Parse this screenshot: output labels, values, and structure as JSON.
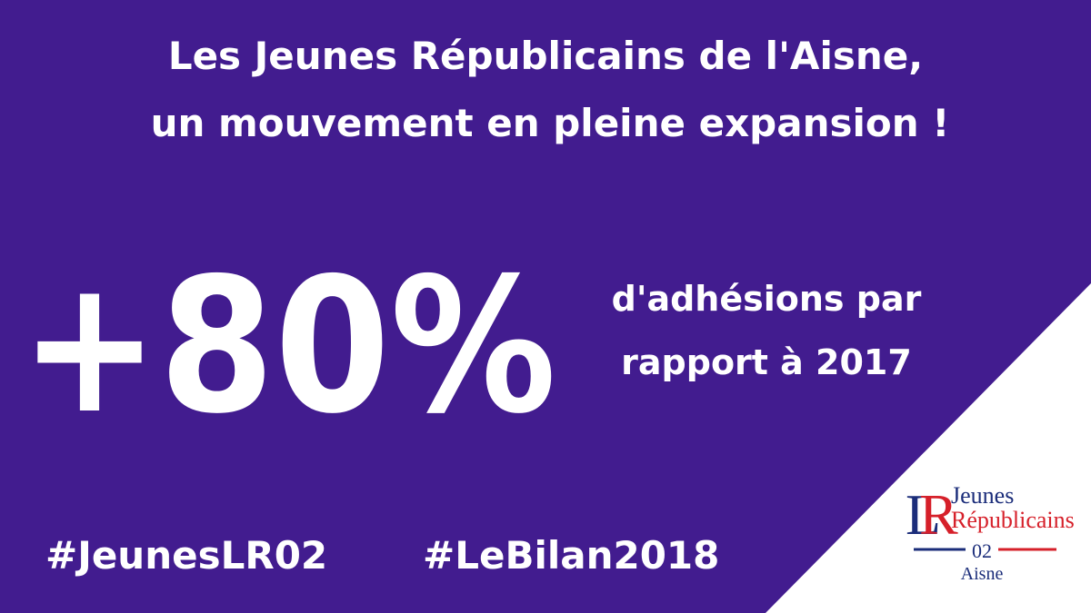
{
  "header": {
    "title_lines": [
      "Les Jeunes Républicains de l'Aisne,",
      "un mouvement en pleine expansion !"
    ]
  },
  "headline": {
    "figure": "+80%",
    "caption_lines": [
      "d'adhésions par",
      "rapport à 2017"
    ]
  },
  "hashtags": [
    "#JeunesLR02",
    "#LeBilan2018"
  ],
  "logo": {
    "letters": [
      "L",
      "R"
    ],
    "line1": "Jeunes",
    "line2": "Républicains",
    "number": "02",
    "place": "Aisne"
  }
}
